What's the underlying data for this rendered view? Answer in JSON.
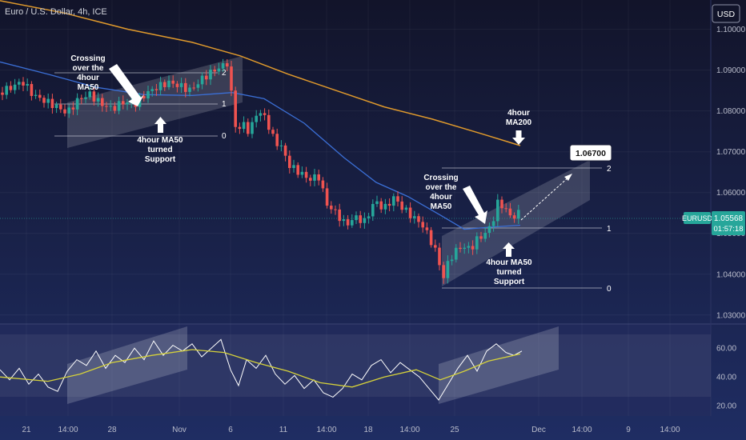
{
  "header": {
    "symbol_title": "Euro / U.S. Dollar, 4h, ICE",
    "currency_button": "USD"
  },
  "price_tag": {
    "ticker": "EURUSD",
    "price": "1.05568",
    "countdown": "01:57:18"
  },
  "target_label": "1.06700",
  "colors": {
    "background_top": "#12142a",
    "background_bottom": "#1d2a5c",
    "bull_candle": "#26a69a",
    "bear_candle": "#ef5350",
    "ma50": "#3b6fd6",
    "ma200": "#e09a2c",
    "rsi_line": "#ffffff",
    "rsi_ma": "#d6d23a",
    "price_tag": "#26a69a"
  },
  "chart_data": {
    "type": "candlestick",
    "symbol": "Euro / U.S. Dollar, 4h, ICE",
    "ylim": [
      1.028,
      1.106
    ],
    "y_ticks": [
      "1.10000",
      "1.09000",
      "1.08000",
      "1.07000",
      "1.06000",
      "1.05000",
      "1.04000",
      "1.03000"
    ],
    "x_ticks": [
      "21",
      "14:00",
      "28",
      "Nov",
      "6",
      "11",
      "14:00",
      "18",
      "14:00",
      "25",
      "Dec",
      "14:00",
      "9",
      "14:00"
    ],
    "last_price": 1.05568,
    "target": 1.067,
    "price_path": [
      [
        0,
        1.0845
      ],
      [
        14,
        1.0858
      ],
      [
        28,
        1.0872
      ],
      [
        42,
        1.0838
      ],
      [
        56,
        1.0825
      ],
      [
        70,
        1.0811
      ],
      [
        84,
        1.0795
      ],
      [
        98,
        1.0828
      ],
      [
        112,
        1.0841
      ],
      [
        126,
        1.0818
      ],
      [
        140,
        1.0805
      ],
      [
        154,
        1.0822
      ],
      [
        168,
        1.0815
      ],
      [
        182,
        1.0842
      ],
      [
        196,
        1.0858
      ],
      [
        210,
        1.087
      ],
      [
        224,
        1.0862
      ],
      [
        238,
        1.085
      ],
      [
        252,
        1.0878
      ],
      [
        266,
        1.0898
      ],
      [
        280,
        1.0912
      ],
      [
        286,
        1.0921
      ],
      [
        290,
        1.0815
      ],
      [
        296,
        1.0745
      ],
      [
        304,
        1.077
      ],
      [
        312,
        1.0745
      ],
      [
        320,
        1.0795
      ],
      [
        330,
        1.079
      ],
      [
        342,
        1.073
      ],
      [
        352,
        1.071
      ],
      [
        362,
        1.0665
      ],
      [
        374,
        1.065
      ],
      [
        386,
        1.0632
      ],
      [
        398,
        1.064
      ],
      [
        408,
        1.0572
      ],
      [
        420,
        1.055
      ],
      [
        432,
        1.052
      ],
      [
        444,
        1.054
      ],
      [
        456,
        1.0528
      ],
      [
        468,
        1.058
      ],
      [
        480,
        1.056
      ],
      [
        492,
        1.0588
      ],
      [
        504,
        1.056
      ],
      [
        516,
        1.054
      ],
      [
        528,
        1.052
      ],
      [
        540,
        1.0475
      ],
      [
        548,
        1.044
      ],
      [
        552,
        1.0378
      ],
      [
        558,
        1.042
      ],
      [
        566,
        1.045
      ],
      [
        576,
        1.0468
      ],
      [
        588,
        1.0462
      ],
      [
        596,
        1.0485
      ],
      [
        606,
        1.05
      ],
      [
        614,
        1.052
      ],
      [
        622,
        1.0575
      ],
      [
        630,
        1.0565
      ],
      [
        638,
        1.054
      ],
      [
        646,
        1.0545
      ],
      [
        652,
        1.0557
      ]
    ],
    "ma50": [
      [
        0,
        1.092
      ],
      [
        60,
        1.089
      ],
      [
        120,
        1.0858
      ],
      [
        180,
        1.084
      ],
      [
        240,
        1.0838
      ],
      [
        290,
        1.0845
      ],
      [
        330,
        1.083
      ],
      [
        380,
        1.077
      ],
      [
        430,
        1.0685
      ],
      [
        470,
        1.0625
      ],
      [
        510,
        1.059
      ],
      [
        550,
        1.0545
      ],
      [
        580,
        1.051
      ],
      [
        610,
        1.0515
      ],
      [
        650,
        1.052
      ]
    ],
    "ma200": [
      [
        0,
        1.107
      ],
      [
        80,
        1.104
      ],
      [
        160,
        1.1
      ],
      [
        240,
        1.0968
      ],
      [
        300,
        1.0935
      ],
      [
        360,
        1.089
      ],
      [
        420,
        1.085
      ],
      [
        480,
        1.081
      ],
      [
        540,
        1.078
      ],
      [
        600,
        1.0745
      ],
      [
        650,
        1.0715
      ]
    ],
    "rsi": {
      "ylim": [
        14,
        74
      ],
      "y_ticks": [
        "60.00",
        "40.00",
        "20.00"
      ],
      "rsi_path": [
        [
          0,
          45
        ],
        [
          12,
          38
        ],
        [
          24,
          46
        ],
        [
          36,
          35
        ],
        [
          48,
          42
        ],
        [
          60,
          33
        ],
        [
          72,
          30
        ],
        [
          84,
          44
        ],
        [
          96,
          52
        ],
        [
          108,
          48
        ],
        [
          120,
          58
        ],
        [
          132,
          46
        ],
        [
          144,
          55
        ],
        [
          156,
          50
        ],
        [
          168,
          60
        ],
        [
          180,
          52
        ],
        [
          192,
          65
        ],
        [
          204,
          55
        ],
        [
          216,
          62
        ],
        [
          228,
          58
        ],
        [
          240,
          63
        ],
        [
          252,
          54
        ],
        [
          264,
          60
        ],
        [
          276,
          66
        ],
        [
          288,
          45
        ],
        [
          298,
          34
        ],
        [
          308,
          52
        ],
        [
          320,
          46
        ],
        [
          332,
          55
        ],
        [
          344,
          42
        ],
        [
          356,
          35
        ],
        [
          368,
          41
        ],
        [
          380,
          32
        ],
        [
          392,
          38
        ],
        [
          404,
          29
        ],
        [
          416,
          26
        ],
        [
          428,
          32
        ],
        [
          440,
          42
        ],
        [
          452,
          38
        ],
        [
          464,
          48
        ],
        [
          476,
          52
        ],
        [
          488,
          43
        ],
        [
          500,
          50
        ],
        [
          512,
          45
        ],
        [
          524,
          40
        ],
        [
          536,
          32
        ],
        [
          548,
          24
        ],
        [
          560,
          35
        ],
        [
          572,
          46
        ],
        [
          584,
          55
        ],
        [
          596,
          44
        ],
        [
          608,
          58
        ],
        [
          620,
          63
        ],
        [
          632,
          57
        ],
        [
          642,
          55
        ],
        [
          652,
          58
        ]
      ],
      "rsi_ma_path": [
        [
          0,
          40
        ],
        [
          60,
          37
        ],
        [
          100,
          42
        ],
        [
          140,
          50
        ],
        [
          190,
          55
        ],
        [
          240,
          59
        ],
        [
          280,
          57
        ],
        [
          320,
          50
        ],
        [
          360,
          44
        ],
        [
          400,
          36
        ],
        [
          440,
          33
        ],
        [
          480,
          40
        ],
        [
          520,
          45
        ],
        [
          550,
          38
        ],
        [
          580,
          44
        ],
        [
          610,
          51
        ],
        [
          650,
          56
        ]
      ]
    },
    "annotations": [
      "Crossing over the 4hour MA50",
      "4hour MA50 turned Support",
      "4hour MA200",
      "Crossing over the 4hour MA50",
      "4hour MA50 turned Support"
    ],
    "fib_levels": [
      "2",
      "1",
      "0",
      "2",
      "1",
      "0"
    ]
  },
  "annotations_text": {
    "left_cross": [
      "Crossing",
      "over the",
      "4hour",
      "MA50"
    ],
    "left_support": [
      "4hour MA50",
      "turned",
      "Support"
    ],
    "ma200": [
      "4hour",
      "MA200"
    ],
    "right_cross": [
      "Crossing",
      "over the",
      "4hour",
      "MA50"
    ],
    "right_support": [
      "4hour MA50",
      "turned",
      "Support"
    ]
  }
}
